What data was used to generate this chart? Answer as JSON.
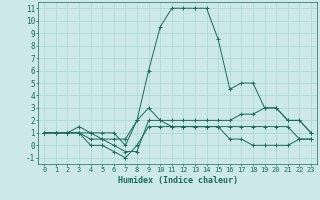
{
  "xlabel": "Humidex (Indice chaleur)",
  "background_color": "#cce8e8",
  "line_color": "#1a6b5a",
  "grid_color": "#aad4d4",
  "xlim": [
    -0.5,
    23.5
  ],
  "ylim": [
    -1.5,
    11.5
  ],
  "yticks": [
    -1,
    0,
    1,
    2,
    3,
    4,
    5,
    6,
    7,
    8,
    9,
    10,
    11
  ],
  "xticks": [
    0,
    1,
    2,
    3,
    4,
    5,
    6,
    7,
    8,
    9,
    10,
    11,
    12,
    13,
    14,
    15,
    16,
    17,
    18,
    19,
    20,
    21,
    22,
    23
  ],
  "lines": [
    {
      "x": [
        0,
        1,
        2,
        3,
        4,
        5,
        6,
        7,
        8,
        9,
        10,
        11,
        12,
        13,
        14,
        15,
        16,
        17,
        18,
        19,
        20,
        21,
        22,
        23
      ],
      "y": [
        1,
        1,
        1,
        1,
        1,
        1,
        1,
        0,
        2,
        6,
        9.5,
        11,
        11,
        11,
        11,
        8.5,
        4.5,
        5,
        5,
        3,
        3,
        2,
        2,
        1
      ]
    },
    {
      "x": [
        0,
        1,
        2,
        3,
        4,
        5,
        6,
        7,
        8,
        9,
        10,
        11,
        12,
        13,
        14,
        15,
        16,
        17,
        18,
        19,
        20,
        21,
        22,
        23
      ],
      "y": [
        1,
        1,
        1,
        1,
        0.5,
        0.5,
        0,
        -0.5,
        -0.5,
        2,
        2,
        2,
        2,
        2,
        2,
        2,
        2,
        2.5,
        2.5,
        3,
        3,
        2,
        2,
        1
      ]
    },
    {
      "x": [
        0,
        1,
        2,
        3,
        4,
        5,
        6,
        7,
        8,
        9,
        10,
        11,
        12,
        13,
        14,
        15,
        16,
        17,
        18,
        19,
        20,
        21,
        22,
        23
      ],
      "y": [
        1,
        1,
        1,
        1,
        0,
        0,
        -0.5,
        -1,
        0,
        1.5,
        1.5,
        1.5,
        1.5,
        1.5,
        1.5,
        1.5,
        1.5,
        1.5,
        1.5,
        1.5,
        1.5,
        1.5,
        0.5,
        0.5
      ]
    },
    {
      "x": [
        0,
        1,
        2,
        3,
        4,
        5,
        6,
        7,
        8,
        9,
        10,
        11,
        12,
        13,
        14,
        15,
        16,
        17,
        18,
        19,
        20,
        21,
        22,
        23
      ],
      "y": [
        1,
        1,
        1,
        1.5,
        1,
        0.5,
        0.5,
        0.5,
        2,
        3,
        2,
        1.5,
        1.5,
        1.5,
        1.5,
        1.5,
        0.5,
        0.5,
        0,
        0,
        0,
        0,
        0.5,
        0.5
      ]
    }
  ]
}
